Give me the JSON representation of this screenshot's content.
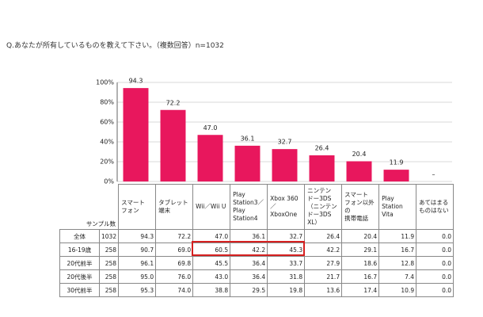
{
  "chart_data": {
    "type": "bar",
    "title": "Q.あなたが所有しているものを教えて下さい。（複数回答）n=1032",
    "categories": [
      "スマート\nフォン",
      "タブレット\n端末",
      "Wii／Wii U",
      "Play\nStation3／\nPlay\nStation4",
      "Xbox 360\n／\nXboxOne",
      "ニンテン\nドー3DS\n（ニンテン\nドー3DS\nXL）",
      "スマート\nフォン以外\nの\n携帯電話",
      "Play\nStation\nVita",
      "あてはまる\nものはない"
    ],
    "values": [
      94.3,
      72.2,
      47.0,
      36.1,
      32.7,
      26.4,
      20.4,
      11.9,
      0.0
    ],
    "value_labels": [
      "94.3",
      "72.2",
      "47.0",
      "36.1",
      "32.7",
      "26.4",
      "20.4",
      "11.9",
      "–"
    ],
    "color": "#e8175d",
    "ylim": [
      0,
      100
    ],
    "yticks": [
      {
        "value": 0,
        "label": "0%"
      },
      {
        "value": 20,
        "label": "20%"
      },
      {
        "value": 40,
        "label": "40%"
      },
      {
        "value": 60,
        "label": "60%"
      },
      {
        "value": 80,
        "label": "80%"
      },
      {
        "value": 100,
        "label": "100%"
      }
    ],
    "grid": true
  },
  "table": {
    "header_label": "サンプル数",
    "rows": [
      [
        "全体",
        "1032",
        "94.3",
        "72.2",
        "47.0",
        "36.1",
        "32.7",
        "26.4",
        "20.4",
        "11.9",
        "0.0"
      ],
      [
        "16-19歳",
        "258",
        "90.7",
        "69.0",
        "60.5",
        "42.2",
        "45.3",
        "42.2",
        "29.1",
        "16.7",
        "0.0"
      ],
      [
        "20代前半",
        "258",
        "96.1",
        "69.8",
        "45.5",
        "36.4",
        "33.7",
        "27.9",
        "18.6",
        "12.8",
        "0.0"
      ],
      [
        "20代後半",
        "258",
        "95.0",
        "76.0",
        "43.0",
        "36.4",
        "31.8",
        "21.7",
        "16.7",
        "7.4",
        "0.0"
      ],
      [
        "30代前半",
        "258",
        "95.3",
        "74.0",
        "38.8",
        "29.5",
        "19.8",
        "13.6",
        "17.4",
        "10.9",
        "0.0"
      ]
    ]
  }
}
